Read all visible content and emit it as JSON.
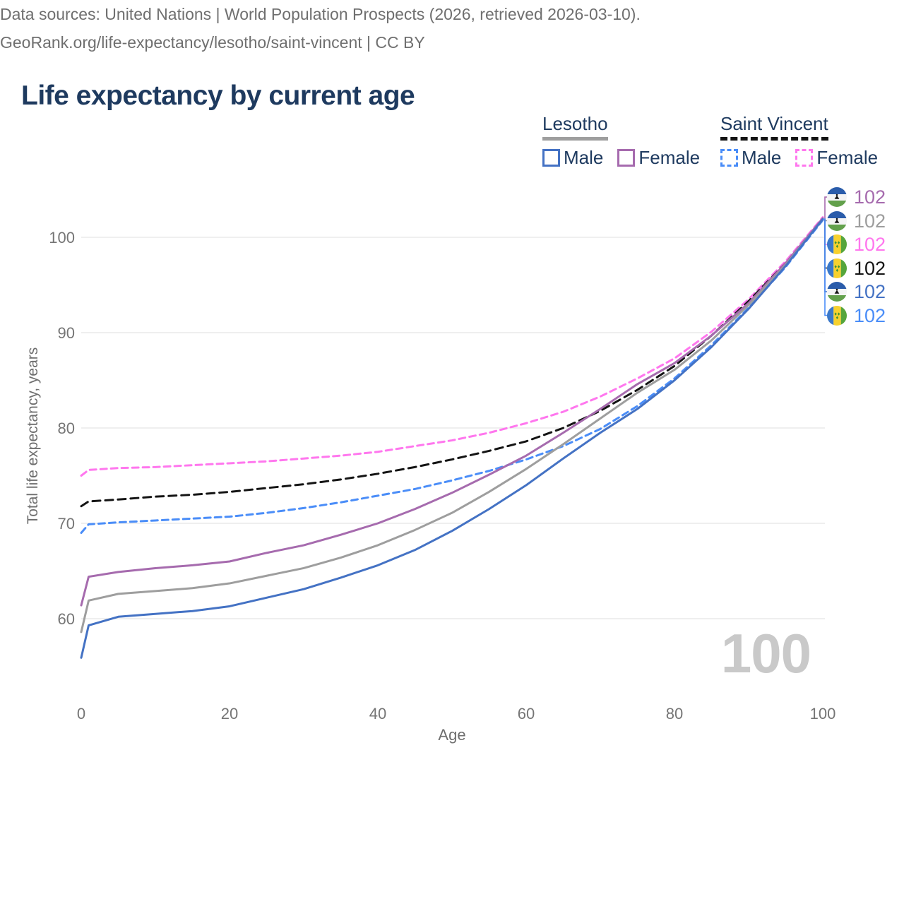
{
  "header": {
    "title": "Life expectancy by current age"
  },
  "legend": {
    "groups": [
      {
        "id": "lesotho",
        "title": "Lesotho",
        "line_style": "solid",
        "color": "#9e9e9e",
        "items": [
          {
            "id": "lesotho-male",
            "label": "Male",
            "swatch_color": "#4472c4",
            "swatch_style": "solid"
          },
          {
            "id": "lesotho-female",
            "label": "Female",
            "swatch_color": "#a66bae",
            "swatch_style": "solid"
          }
        ]
      },
      {
        "id": "saint-vincent",
        "title": "Saint Vincent",
        "line_style": "dashed",
        "color": "#141414",
        "items": [
          {
            "id": "sv-male",
            "label": "Male",
            "swatch_color": "#4a8df8",
            "swatch_style": "dashed"
          },
          {
            "id": "sv-female",
            "label": "Female",
            "swatch_color": "#ff77ee",
            "swatch_style": "dashed"
          }
        ]
      }
    ]
  },
  "end_labels": [
    {
      "flag": "lesotho",
      "flag_name": "lesotho-flag-icon",
      "value": "102",
      "color": "#a66bae",
      "series": "lesotho-female"
    },
    {
      "flag": "lesotho",
      "flag_name": "lesotho-flag-icon",
      "value": "102",
      "color": "#9e9e9e",
      "series": "lesotho-total"
    },
    {
      "flag": "saint-vincent",
      "flag_name": "saint-vincent-flag-icon",
      "value": "102",
      "color": "#ff77ee",
      "series": "sv-female"
    },
    {
      "flag": "saint-vincent",
      "flag_name": "saint-vincent-flag-icon",
      "value": "102",
      "color": "#141414",
      "series": "sv-total"
    },
    {
      "flag": "lesotho",
      "flag_name": "lesotho-flag-icon",
      "value": "102",
      "color": "#4472c4",
      "series": "lesotho-male"
    },
    {
      "flag": "saint-vincent",
      "flag_name": "saint-vincent-flag-icon",
      "value": "102",
      "color": "#4a8df8",
      "series": "sv-male"
    }
  ],
  "watermark": "100",
  "footer": {
    "line1": "Data sources: United Nations | World Population Prospects (2026, retrieved 2026-03-10).",
    "line2": "GeoRank.org/life-expectancy/lesotho/saint-vincent | CC BY"
  },
  "chart_data": {
    "type": "line",
    "title": "Life expectancy by current age",
    "xlabel": "Age",
    "ylabel": "Total life expectancy, years",
    "xlim": [
      0,
      100
    ],
    "ylim": [
      52,
      106
    ],
    "x_ticks": [
      0,
      20,
      40,
      60,
      80,
      100
    ],
    "y_ticks": [
      60,
      70,
      80,
      90,
      100
    ],
    "grid": "horizontal",
    "legend_position": "top-right",
    "x": [
      0,
      1,
      5,
      10,
      15,
      20,
      25,
      30,
      35,
      40,
      45,
      50,
      55,
      60,
      65,
      70,
      75,
      80,
      85,
      90,
      95,
      100
    ],
    "series": [
      {
        "id": "sv-female",
        "name": "Saint Vincent Female",
        "color": "#ff77ee",
        "dash": "9 6",
        "width": 3,
        "values": [
          75.0,
          75.6,
          75.8,
          75.9,
          76.1,
          76.3,
          76.5,
          76.8,
          77.1,
          77.5,
          78.1,
          78.7,
          79.5,
          80.5,
          81.7,
          83.3,
          85.2,
          87.3,
          90.1,
          93.5,
          97.5,
          102.1
        ]
      },
      {
        "id": "sv-total",
        "name": "Saint Vincent Total",
        "color": "#141414",
        "dash": "11 7",
        "width": 3,
        "values": [
          71.8,
          72.3,
          72.5,
          72.8,
          73.0,
          73.3,
          73.7,
          74.1,
          74.6,
          75.2,
          75.9,
          76.7,
          77.6,
          78.6,
          80.0,
          81.8,
          84.0,
          86.5,
          89.7,
          93.3,
          97.3,
          101.9
        ]
      },
      {
        "id": "sv-male",
        "name": "Saint Vincent Male",
        "color": "#4a8df8",
        "dash": "9 6",
        "width": 3,
        "values": [
          69.0,
          69.9,
          70.1,
          70.3,
          70.5,
          70.7,
          71.1,
          71.6,
          72.2,
          72.9,
          73.6,
          74.5,
          75.5,
          76.7,
          78.1,
          79.9,
          82.3,
          85.2,
          88.7,
          92.6,
          96.9,
          101.8
        ]
      },
      {
        "id": "lesotho-female",
        "name": "Lesotho Female",
        "color": "#a66bae",
        "dash": null,
        "width": 3,
        "values": [
          61.4,
          64.4,
          64.9,
          65.3,
          65.6,
          66.0,
          66.9,
          67.7,
          68.8,
          70.0,
          71.5,
          73.2,
          75.1,
          77.1,
          79.5,
          82.0,
          84.6,
          86.8,
          89.7,
          93.1,
          97.3,
          102.0
        ]
      },
      {
        "id": "lesotho-total",
        "name": "Lesotho Total",
        "color": "#9e9e9e",
        "dash": null,
        "width": 3,
        "values": [
          58.6,
          61.9,
          62.6,
          62.9,
          63.2,
          63.7,
          64.5,
          65.3,
          66.4,
          67.7,
          69.3,
          71.1,
          73.3,
          75.7,
          78.3,
          81.0,
          83.7,
          86.1,
          89.2,
          92.9,
          97.1,
          101.9
        ]
      },
      {
        "id": "lesotho-male",
        "name": "Lesotho Male",
        "color": "#4472c4",
        "dash": null,
        "width": 3,
        "values": [
          55.9,
          59.3,
          60.2,
          60.5,
          60.8,
          61.3,
          62.2,
          63.1,
          64.3,
          65.6,
          67.2,
          69.2,
          71.5,
          74.0,
          76.8,
          79.5,
          82.0,
          85.0,
          88.5,
          92.5,
          97.0,
          101.9
        ]
      }
    ]
  }
}
